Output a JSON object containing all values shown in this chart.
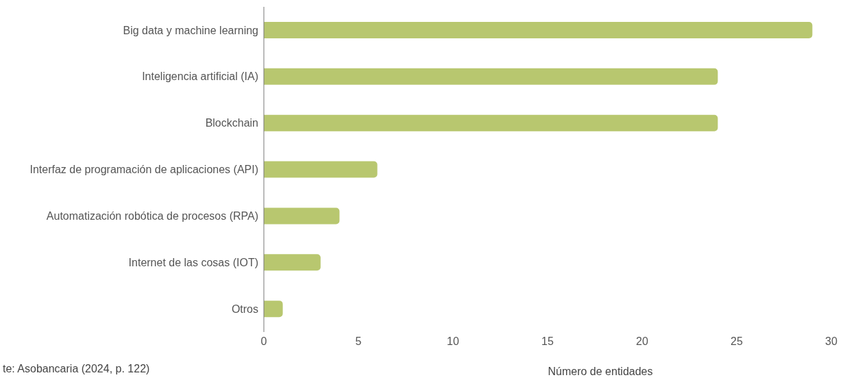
{
  "chart_data": {
    "type": "bar",
    "orientation": "horizontal",
    "xlabel": "Número de entidades",
    "categories": [
      "Big data y machine learning",
      "Inteligencia artificial (IA)",
      "Blockchain",
      "Interfaz de programación de aplicaciones (API)",
      "Automatización robótica de procesos (RPA)",
      "Internet de las cosas (IOT)",
      "Otros"
    ],
    "values": [
      29,
      24,
      24,
      6,
      4,
      3,
      1
    ],
    "color": "#b8c76f",
    "xlim": [
      0,
      30
    ],
    "xticks": [
      0,
      5,
      10,
      15,
      20,
      25,
      30
    ],
    "annotations": [
      "te: Asobancaria (2024, p. 122)"
    ]
  }
}
